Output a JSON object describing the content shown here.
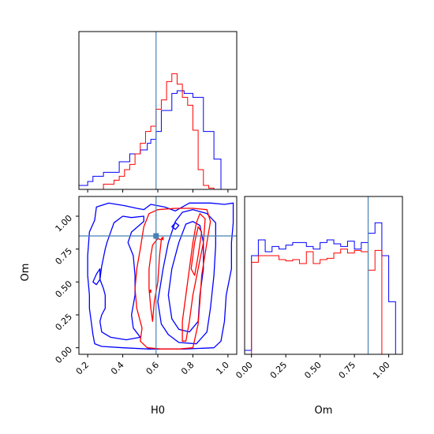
{
  "chart_data": {
    "type": "corner",
    "parameters": [
      "H0",
      "Om"
    ],
    "truth": {
      "H0": 0.59,
      "Om": 0.85
    },
    "colors": {
      "blue": "#0000ff",
      "red": "#ff0000",
      "truth": "#4682b4"
    },
    "grid": false,
    "panels": {
      "hist_H0": {
        "xlabel": "",
        "ticks": [
          0.2,
          0.4,
          0.6,
          0.8,
          1.0
        ],
        "tick_labels": [],
        "xlim": [
          0.15,
          1.05
        ],
        "ylim": [
          0,
          1.2
        ],
        "series": [
          {
            "color": "blue",
            "edges": [
              0.15,
              0.2,
              0.23,
              0.29,
              0.38,
              0.44,
              0.5,
              0.54,
              0.56,
              0.59,
              0.62,
              0.65,
              0.68,
              0.71,
              0.75,
              0.8,
              0.86,
              0.92,
              0.96,
              1.05
            ],
            "values": [
              0.03,
              0.06,
              0.1,
              0.13,
              0.21,
              0.27,
              0.3,
              0.35,
              0.38,
              0.44,
              0.6,
              0.6,
              0.73,
              0.75,
              0.73,
              0.7,
              0.44,
              0.23,
              0.0
            ]
          },
          {
            "color": "red",
            "edges": [
              0.15,
              0.29,
              0.35,
              0.38,
              0.41,
              0.44,
              0.47,
              0.5,
              0.53,
              0.56,
              0.59,
              0.62,
              0.65,
              0.68,
              0.71,
              0.74,
              0.77,
              0.8,
              0.83,
              0.86,
              0.89,
              0.92,
              1.05
            ],
            "values": [
              0.0,
              0.04,
              0.07,
              0.1,
              0.15,
              0.19,
              0.27,
              0.35,
              0.44,
              0.48,
              0.61,
              0.68,
              0.82,
              0.88,
              0.8,
              0.7,
              0.64,
              0.45,
              0.15,
              0.03,
              0.01,
              0.0
            ]
          }
        ]
      },
      "contour_H0_Om": {
        "xlabel": "H0",
        "ylabel": "Om",
        "xticks": [
          0.2,
          0.4,
          0.6,
          0.8,
          1.0
        ],
        "xtick_labels": [
          "0.2",
          "0.4",
          "0.6",
          "0.8",
          "1.0"
        ],
        "yticks": [
          0.0,
          0.25,
          0.5,
          0.75,
          1.0
        ],
        "ytick_labels": [
          "0.00",
          "0.25",
          "0.50",
          "0.75",
          "1.00"
        ],
        "xlim": [
          0.15,
          1.05
        ],
        "ylim": [
          -0.05,
          1.15
        ],
        "contours": [
          {
            "color": "blue",
            "points": [
              [
                0.21,
                0.88
              ],
              [
                0.24,
                0.97
              ],
              [
                0.25,
                1.07
              ],
              [
                0.32,
                1.1
              ],
              [
                0.41,
                1.08
              ],
              [
                0.48,
                1.06
              ],
              [
                0.52,
                1.05
              ],
              [
                0.56,
                1.09
              ],
              [
                0.64,
                1.07
              ],
              [
                0.7,
                1.04
              ],
              [
                0.78,
                1.1
              ],
              [
                0.9,
                1.1
              ],
              [
                0.98,
                1.09
              ],
              [
                1.03,
                1.1
              ],
              [
                1.03,
                0.95
              ],
              [
                1.02,
                0.8
              ],
              [
                1.02,
                0.6
              ],
              [
                0.99,
                0.4
              ],
              [
                0.98,
                0.2
              ],
              [
                0.96,
                0.05
              ],
              [
                0.92,
                0.0
              ],
              [
                0.75,
                -0.01
              ],
              [
                0.55,
                -0.01
              ],
              [
                0.4,
                0.0
              ],
              [
                0.28,
                0.01
              ],
              [
                0.24,
                0.03
              ],
              [
                0.23,
                0.1
              ],
              [
                0.22,
                0.2
              ],
              [
                0.21,
                0.3
              ],
              [
                0.21,
                0.4
              ],
              [
                0.2,
                0.55
              ],
              [
                0.2,
                0.7
              ],
              [
                0.21,
                0.88
              ]
            ]
          },
          {
            "color": "blue",
            "points": [
              [
                0.31,
                0.8
              ],
              [
                0.35,
                0.95
              ],
              [
                0.4,
                1.0
              ],
              [
                0.45,
                0.99
              ],
              [
                0.52,
                1.0
              ],
              [
                0.52,
                0.96
              ],
              [
                0.45,
                0.88
              ],
              [
                0.43,
                0.8
              ],
              [
                0.46,
                0.7
              ],
              [
                0.47,
                0.55
              ],
              [
                0.47,
                0.4
              ],
              [
                0.45,
                0.25
              ],
              [
                0.46,
                0.15
              ],
              [
                0.5,
                0.08
              ],
              [
                0.42,
                0.06
              ],
              [
                0.33,
                0.08
              ],
              [
                0.28,
                0.12
              ],
              [
                0.27,
                0.2
              ],
              [
                0.28,
                0.25
              ],
              [
                0.3,
                0.3
              ],
              [
                0.3,
                0.4
              ],
              [
                0.29,
                0.45
              ],
              [
                0.27,
                0.52
              ],
              [
                0.28,
                0.62
              ],
              [
                0.3,
                0.75
              ],
              [
                0.31,
                0.8
              ]
            ]
          },
          {
            "color": "blue",
            "points": [
              [
                0.23,
                0.5
              ],
              [
                0.25,
                0.56
              ],
              [
                0.27,
                0.6
              ],
              [
                0.27,
                0.52
              ],
              [
                0.25,
                0.48
              ],
              [
                0.23,
                0.5
              ]
            ]
          },
          {
            "color": "blue",
            "points": [
              [
                0.6,
                0.35
              ],
              [
                0.63,
                0.6
              ],
              [
                0.66,
                0.8
              ],
              [
                0.7,
                0.96
              ],
              [
                0.74,
                1.03
              ],
              [
                0.8,
                1.05
              ],
              [
                0.88,
                1.02
              ],
              [
                0.93,
                0.95
              ],
              [
                0.93,
                0.78
              ],
              [
                0.92,
                0.55
              ],
              [
                0.9,
                0.3
              ],
              [
                0.88,
                0.12
              ],
              [
                0.82,
                0.03
              ],
              [
                0.72,
                0.04
              ],
              [
                0.66,
                0.1
              ],
              [
                0.62,
                0.18
              ],
              [
                0.6,
                0.35
              ]
            ]
          },
          {
            "color": "blue",
            "points": [
              [
                0.66,
                0.4
              ],
              [
                0.68,
                0.6
              ],
              [
                0.72,
                0.8
              ],
              [
                0.76,
                0.94
              ],
              [
                0.8,
                0.96
              ],
              [
                0.84,
                0.93
              ],
              [
                0.86,
                0.8
              ],
              [
                0.86,
                0.6
              ],
              [
                0.84,
                0.4
              ],
              [
                0.83,
                0.2
              ],
              [
                0.78,
                0.12
              ],
              [
                0.72,
                0.14
              ],
              [
                0.68,
                0.22
              ],
              [
                0.66,
                0.4
              ]
            ]
          },
          {
            "color": "blue",
            "points": [
              [
                0.68,
                0.92
              ],
              [
                0.7,
                0.95
              ],
              [
                0.72,
                0.93
              ],
              [
                0.7,
                0.9
              ],
              [
                0.68,
                0.92
              ]
            ]
          },
          {
            "color": "red",
            "points": [
              [
                0.48,
                0.6
              ],
              [
                0.5,
                0.75
              ],
              [
                0.52,
                0.92
              ],
              [
                0.55,
                1.02
              ],
              [
                0.6,
                1.05
              ],
              [
                0.7,
                1.06
              ],
              [
                0.8,
                1.06
              ],
              [
                0.88,
                1.05
              ],
              [
                0.9,
                0.96
              ],
              [
                0.88,
                0.8
              ],
              [
                0.85,
                0.55
              ],
              [
                0.84,
                0.35
              ],
              [
                0.83,
                0.18
              ],
              [
                0.8,
                0.0
              ],
              [
                0.72,
                -0.01
              ],
              [
                0.62,
                -0.01
              ],
              [
                0.54,
                0.0
              ],
              [
                0.5,
                0.05
              ],
              [
                0.51,
                0.15
              ],
              [
                0.48,
                0.3
              ],
              [
                0.47,
                0.45
              ],
              [
                0.48,
                0.6
              ]
            ]
          },
          {
            "color": "red",
            "points": [
              [
                0.55,
                0.6
              ],
              [
                0.56,
                0.7
              ],
              [
                0.57,
                0.78
              ],
              [
                0.6,
                0.83
              ],
              [
                0.62,
                0.82
              ],
              [
                0.61,
                0.7
              ],
              [
                0.6,
                0.5
              ],
              [
                0.58,
                0.35
              ],
              [
                0.57,
                0.2
              ],
              [
                0.56,
                0.3
              ],
              [
                0.55,
                0.45
              ],
              [
                0.55,
                0.6
              ]
            ]
          },
          {
            "color": "red",
            "points": [
              [
                0.74,
                0.2
              ],
              [
                0.76,
                0.4
              ],
              [
                0.78,
                0.6
              ],
              [
                0.8,
                0.8
              ],
              [
                0.82,
                0.95
              ],
              [
                0.84,
                1.02
              ],
              [
                0.87,
                0.98
              ],
              [
                0.86,
                0.8
              ],
              [
                0.83,
                0.6
              ],
              [
                0.8,
                0.4
              ],
              [
                0.78,
                0.2
              ],
              [
                0.76,
                0.05
              ],
              [
                0.74,
                0.05
              ],
              [
                0.74,
                0.2
              ]
            ]
          },
          {
            "color": "red",
            "points": [
              [
                0.79,
                0.6
              ],
              [
                0.81,
                0.8
              ],
              [
                0.83,
                0.92
              ],
              [
                0.85,
                0.88
              ],
              [
                0.83,
                0.7
              ],
              [
                0.81,
                0.55
              ],
              [
                0.79,
                0.6
              ]
            ]
          },
          {
            "color": "red",
            "points": [
              [
                0.55,
                0.43
              ],
              [
                0.56,
                0.44
              ],
              [
                0.56,
                0.42
              ],
              [
                0.55,
                0.43
              ]
            ]
          },
          {
            "color": "red",
            "points": [
              [
                0.62,
                0.83
              ],
              [
                0.63,
                0.84
              ],
              [
                0.63,
                0.82
              ],
              [
                0.62,
                0.83
              ]
            ]
          }
        ]
      },
      "hist_Om": {
        "xlabel": "Om",
        "ticks": [
          0.0,
          0.25,
          0.5,
          0.75,
          1.0
        ],
        "tick_labels": [
          "0.00",
          "0.25",
          "0.50",
          "0.75",
          "1.00"
        ],
        "xlim": [
          -0.05,
          1.1
        ],
        "ylim": [
          0,
          1.2
        ],
        "series": [
          {
            "color": "blue",
            "edges": [
              -0.05,
              0.0,
              0.05,
              0.1,
              0.15,
              0.2,
              0.25,
              0.3,
              0.35,
              0.4,
              0.45,
              0.5,
              0.55,
              0.6,
              0.65,
              0.7,
              0.75,
              0.8,
              0.85,
              0.9,
              0.95,
              1.0,
              1.05,
              1.1
            ],
            "values": [
              0.03,
              0.75,
              0.87,
              0.78,
              0.82,
              0.8,
              0.83,
              0.85,
              0.85,
              0.82,
              0.8,
              0.85,
              0.87,
              0.84,
              0.82,
              0.86,
              0.8,
              0.85,
              0.92,
              1.0,
              0.75,
              0.4,
              0.0
            ]
          },
          {
            "color": "red",
            "edges": [
              -0.05,
              0.0,
              0.05,
              0.1,
              0.15,
              0.2,
              0.25,
              0.3,
              0.35,
              0.4,
              0.45,
              0.5,
              0.55,
              0.6,
              0.65,
              0.7,
              0.75,
              0.8,
              0.85,
              0.9,
              0.95,
              1.0
            ],
            "values": [
              0.0,
              0.7,
              0.75,
              0.75,
              0.75,
              0.72,
              0.71,
              0.72,
              0.69,
              0.78,
              0.69,
              0.72,
              0.73,
              0.77,
              0.8,
              0.77,
              0.79,
              0.78,
              0.64,
              0.79,
              0.0
            ]
          }
        ]
      }
    }
  }
}
